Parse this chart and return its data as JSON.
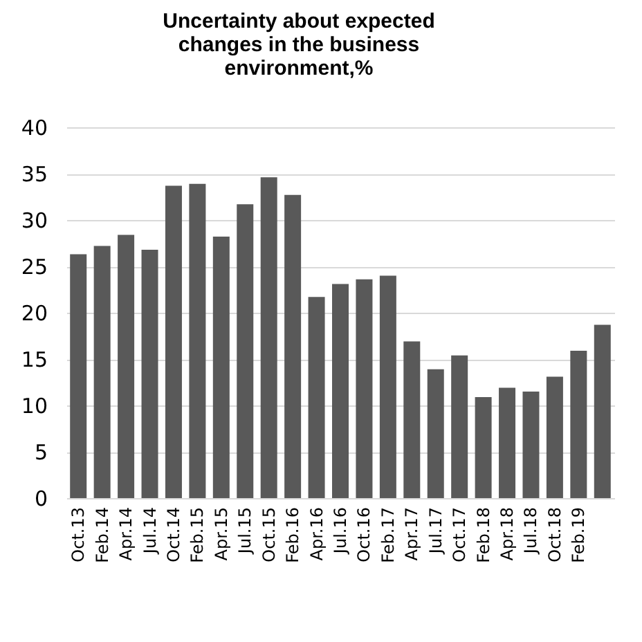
{
  "chart_data": {
    "type": "bar",
    "title": [
      "Uncertainty about expected",
      "changes in the business",
      "environment,%"
    ],
    "categories": [
      "Oct.13",
      "Feb.14",
      "Apr.14",
      "Jul.14",
      "Oct.14",
      "Feb.15",
      "Apr.15",
      "Jul.15",
      "Oct.15",
      "Feb.16",
      "Apr.16",
      "Jul.16",
      "Oct.16",
      "Feb.17",
      "Apr.17",
      "Jul.17",
      "Oct.17",
      "Feb.18",
      "Apr.18",
      "Jul.18",
      "Oct.18",
      "Feb.19",
      null
    ],
    "values": [
      26.3,
      27.2,
      28.4,
      26.8,
      33.7,
      33.9,
      28.2,
      31.7,
      34.6,
      32.7,
      21.7,
      23.1,
      23.6,
      24.0,
      16.9,
      13.9,
      15.4,
      10.9,
      11.9,
      11.5,
      13.1,
      15.9,
      18.7
    ],
    "color": "#595959",
    "ylim": [
      0,
      40
    ],
    "yticks": [
      0,
      5,
      10,
      15,
      20,
      25,
      30,
      35,
      40
    ],
    "grid": "y"
  }
}
